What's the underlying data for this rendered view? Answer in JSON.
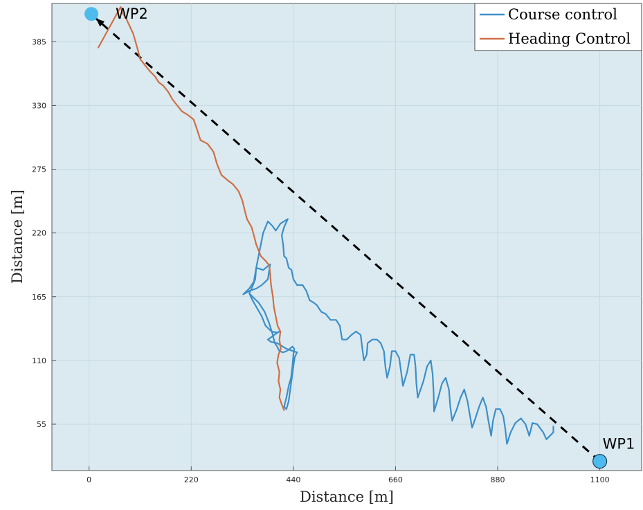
{
  "chart_data": {
    "type": "line",
    "xlabel": "Distance [m]",
    "ylabel": "Distance [m]",
    "xlim": [
      -80,
      1190
    ],
    "ylim": [
      15,
      418
    ],
    "xticks": [
      0,
      220,
      440,
      660,
      880,
      1100
    ],
    "yticks": [
      55,
      110,
      165,
      220,
      275,
      330,
      385
    ],
    "grid": true,
    "legend_position": "top-right",
    "colors": {
      "background": "#dbeaf0",
      "grid": "#c4d9e2",
      "course": "#3d8fc8",
      "heading": "#cf6f45",
      "path": "#000000",
      "waypoint": "#4dbbed"
    },
    "series": [
      {
        "name": "Course control",
        "color": "#3d8fc8",
        "points": [
          [
            1000,
            53
          ],
          [
            1000,
            48
          ],
          [
            985,
            42
          ],
          [
            978,
            48
          ],
          [
            965,
            55
          ],
          [
            955,
            56
          ],
          [
            948,
            45
          ],
          [
            940,
            55
          ],
          [
            930,
            60
          ],
          [
            918,
            56
          ],
          [
            908,
            48
          ],
          [
            900,
            38
          ],
          [
            896,
            52
          ],
          [
            892,
            62
          ],
          [
            885,
            68
          ],
          [
            876,
            68
          ],
          [
            870,
            58
          ],
          [
            866,
            45
          ],
          [
            860,
            58
          ],
          [
            855,
            70
          ],
          [
            848,
            78
          ],
          [
            840,
            70
          ],
          [
            832,
            60
          ],
          [
            825,
            52
          ],
          [
            820,
            63
          ],
          [
            815,
            75
          ],
          [
            808,
            85
          ],
          [
            800,
            78
          ],
          [
            792,
            68
          ],
          [
            782,
            58
          ],
          [
            778,
            70
          ],
          [
            775,
            85
          ],
          [
            768,
            95
          ],
          [
            760,
            90
          ],
          [
            752,
            78
          ],
          [
            743,
            66
          ],
          [
            742,
            82
          ],
          [
            740,
            98
          ],
          [
            736,
            110
          ],
          [
            728,
            105
          ],
          [
            720,
            92
          ],
          [
            708,
            78
          ],
          [
            705,
            90
          ],
          [
            703,
            105
          ],
          [
            700,
            115
          ],
          [
            692,
            115
          ],
          [
            685,
            100
          ],
          [
            676,
            88
          ],
          [
            672,
            100
          ],
          [
            668,
            112
          ],
          [
            660,
            118
          ],
          [
            652,
            118
          ],
          [
            648,
            105
          ],
          [
            642,
            95
          ],
          [
            638,
            105
          ],
          [
            635,
            118
          ],
          [
            628,
            125
          ],
          [
            620,
            128
          ],
          [
            610,
            128
          ],
          [
            600,
            125
          ],
          [
            598,
            115
          ],
          [
            592,
            110
          ],
          [
            588,
            122
          ],
          [
            585,
            132
          ],
          [
            575,
            135
          ],
          [
            565,
            132
          ],
          [
            555,
            128
          ],
          [
            545,
            128
          ],
          [
            540,
            140
          ],
          [
            532,
            145
          ],
          [
            520,
            145
          ],
          [
            510,
            150
          ],
          [
            500,
            152
          ],
          [
            490,
            158
          ],
          [
            483,
            160
          ],
          [
            475,
            162
          ],
          [
            468,
            170
          ],
          [
            460,
            175
          ],
          [
            448,
            175
          ],
          [
            440,
            180
          ],
          [
            436,
            188
          ],
          [
            430,
            190
          ],
          [
            425,
            198
          ],
          [
            420,
            200
          ],
          [
            418,
            210
          ],
          [
            415,
            218
          ],
          [
            420,
            225
          ],
          [
            428,
            232
          ],
          [
            412,
            228
          ],
          [
            402,
            222
          ],
          [
            395,
            226
          ],
          [
            385,
            230
          ],
          [
            375,
            220
          ],
          [
            365,
            200
          ],
          [
            360,
            190
          ],
          [
            375,
            188
          ],
          [
            390,
            193
          ],
          [
            385,
            180
          ],
          [
            372,
            175
          ],
          [
            360,
            172
          ],
          [
            345,
            170
          ],
          [
            332,
            167
          ],
          [
            345,
            172
          ],
          [
            355,
            178
          ],
          [
            360,
            190
          ],
          [
            358,
            180
          ],
          [
            350,
            172
          ],
          [
            345,
            168
          ],
          [
            352,
            162
          ],
          [
            362,
            155
          ],
          [
            372,
            148
          ],
          [
            380,
            140
          ],
          [
            393,
            135
          ],
          [
            405,
            134
          ],
          [
            410,
            135
          ],
          [
            402,
            133
          ],
          [
            392,
            130
          ],
          [
            385,
            128
          ],
          [
            392,
            126
          ],
          [
            405,
            125
          ],
          [
            413,
            123
          ],
          [
            425,
            120
          ],
          [
            440,
            118
          ],
          [
            448,
            117
          ],
          [
            443,
            113
          ],
          [
            440,
            105
          ],
          [
            435,
            90
          ],
          [
            430,
            75
          ],
          [
            425,
            68
          ],
          [
            420,
            70
          ],
          [
            425,
            78
          ],
          [
            430,
            88
          ],
          [
            435,
            95
          ],
          [
            438,
            105
          ],
          [
            440,
            115
          ],
          [
            442,
            120
          ],
          [
            438,
            122
          ],
          [
            432,
            120
          ],
          [
            425,
            118
          ],
          [
            418,
            117
          ],
          [
            410,
            118
          ],
          [
            405,
            122
          ],
          [
            400,
            125
          ],
          [
            395,
            133
          ],
          [
            388,
            142
          ],
          [
            378,
            152
          ],
          [
            365,
            160
          ],
          [
            352,
            165
          ],
          [
            345,
            168
          ]
        ]
      },
      {
        "name": "Heading Control",
        "color": "#cf6f45",
        "points": [
          [
            420,
            67
          ],
          [
            415,
            72
          ],
          [
            410,
            78
          ],
          [
            412,
            85
          ],
          [
            408,
            92
          ],
          [
            410,
            100
          ],
          [
            405,
            108
          ],
          [
            408,
            115
          ],
          [
            413,
            120
          ],
          [
            410,
            128
          ],
          [
            412,
            135
          ],
          [
            406,
            140
          ],
          [
            402,
            148
          ],
          [
            398,
            156
          ],
          [
            396,
            165
          ],
          [
            392,
            175
          ],
          [
            390,
            185
          ],
          [
            388,
            192
          ],
          [
            380,
            196
          ],
          [
            370,
            200
          ],
          [
            360,
            210
          ],
          [
            355,
            218
          ],
          [
            350,
            225
          ],
          [
            340,
            232
          ],
          [
            335,
            240
          ],
          [
            330,
            248
          ],
          [
            322,
            256
          ],
          [
            310,
            262
          ],
          [
            300,
            265
          ],
          [
            285,
            270
          ],
          [
            275,
            280
          ],
          [
            268,
            290
          ],
          [
            255,
            297
          ],
          [
            240,
            300
          ],
          [
            232,
            310
          ],
          [
            225,
            318
          ],
          [
            212,
            322
          ],
          [
            200,
            325
          ],
          [
            190,
            330
          ],
          [
            180,
            335
          ],
          [
            170,
            342
          ],
          [
            160,
            347
          ],
          [
            150,
            350
          ],
          [
            142,
            355
          ],
          [
            130,
            360
          ],
          [
            120,
            365
          ],
          [
            110,
            370
          ],
          [
            105,
            378
          ],
          [
            100,
            385
          ],
          [
            95,
            392
          ],
          [
            88,
            398
          ],
          [
            80,
            405
          ],
          [
            72,
            410
          ],
          [
            68,
            415
          ],
          [
            20,
            380
          ]
        ]
      }
    ],
    "reference_path": {
      "from": [
        1100,
        23
      ],
      "to": [
        15,
        405
      ]
    },
    "waypoints": [
      {
        "label": "WP1",
        "x": 1100,
        "y": 23
      },
      {
        "label": "WP2",
        "x": 5,
        "y": 409
      }
    ]
  }
}
